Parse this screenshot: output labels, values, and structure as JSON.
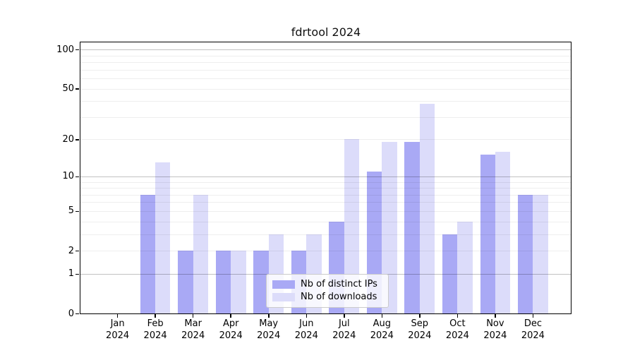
{
  "chart_data": {
    "type": "bar",
    "title": "fdrtool 2024",
    "categories": [
      "Jan 2024",
      "Feb 2024",
      "Mar 2024",
      "Apr 2024",
      "May 2024",
      "Jun 2024",
      "Jul 2024",
      "Aug 2024",
      "Sep 2024",
      "Oct 2024",
      "Nov 2024",
      "Dec 2024"
    ],
    "month_labels": [
      "Jan",
      "Feb",
      "Mar",
      "Apr",
      "May",
      "Jun",
      "Jul",
      "Aug",
      "Sep",
      "Oct",
      "Nov",
      "Dec"
    ],
    "x_tick_year": "2024",
    "series": [
      {
        "name": "Nb of distinct IPs",
        "color": "#a9a9f5",
        "values": [
          0,
          7,
          2,
          2,
          2,
          2,
          4,
          11,
          19,
          3,
          15,
          7
        ]
      },
      {
        "name": "Nb of downloads",
        "color": "#dcdcfa",
        "values": [
          0,
          13,
          7,
          2,
          3,
          3,
          20,
          19,
          38,
          4,
          16,
          7
        ]
      }
    ],
    "yscale": "log1p",
    "ylim": [
      0,
      116
    ],
    "yticks": [
      0,
      1,
      2,
      5,
      10,
      20,
      50,
      100
    ],
    "grid_major": [
      1,
      10,
      100
    ],
    "grid_minor": [
      2,
      3,
      4,
      5,
      6,
      7,
      8,
      9,
      20,
      30,
      40,
      50,
      60,
      70,
      80,
      90
    ],
    "grid": "horizontal",
    "legend_position": "lower center",
    "xlabel": "",
    "ylabel": ""
  }
}
